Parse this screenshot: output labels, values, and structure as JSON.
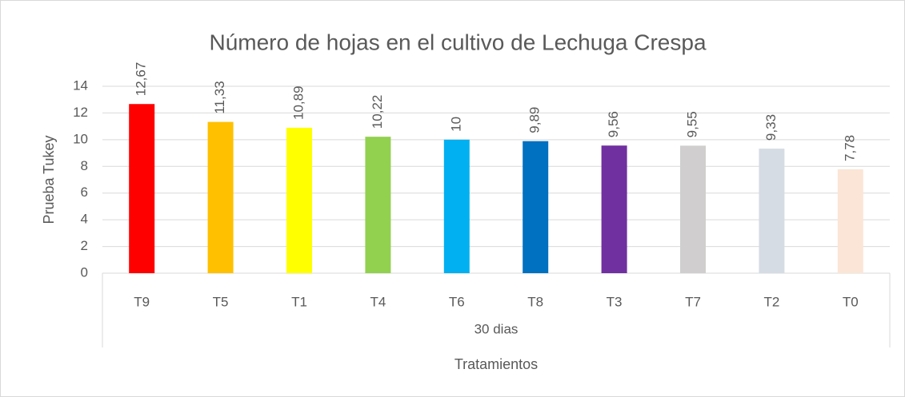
{
  "chart_data": {
    "type": "bar",
    "title": "Número de hojas en el cultivo de Lechuga Crespa",
    "categories": [
      "T9",
      "T5",
      "T1",
      "T4",
      "T6",
      "T8",
      "T3",
      "T7",
      "T2",
      "T0"
    ],
    "group_label": "30 dias",
    "x_label": "Tratamientos",
    "y_label": "Prueba Tukey",
    "values": [
      12.67,
      11.33,
      10.89,
      10.22,
      10,
      9.89,
      9.56,
      9.55,
      9.33,
      7.78
    ],
    "value_labels": [
      "12,67",
      "11,33",
      "10,89",
      "10,22",
      "10",
      "9,89",
      "9,56",
      "9,55",
      "9,33",
      "7,78"
    ],
    "colors": [
      "#ff0000",
      "#ffc000",
      "#ffff00",
      "#92d050",
      "#00b0f0",
      "#0070c0",
      "#7030a0",
      "#d0cece",
      "#d6dce4",
      "#fbe5d6"
    ],
    "ylim": [
      0,
      14
    ],
    "yticks": [
      0,
      2,
      4,
      6,
      8,
      10,
      12,
      14
    ],
    "grid": true
  }
}
